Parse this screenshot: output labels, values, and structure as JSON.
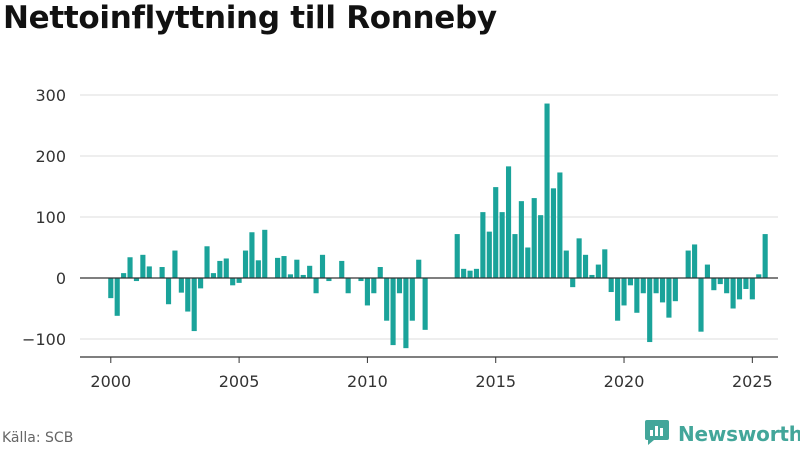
{
  "title": "Nettoinflyttning till Ronneby",
  "source": "Källa: SCB",
  "brand": {
    "name": "Newsworthy",
    "icon": "newsworthy-logo-icon"
  },
  "colors": {
    "bar": "#1aa39a",
    "grid": "#dddddd",
    "zero": "#333333",
    "brand": "#43a69a"
  },
  "chart_data": {
    "type": "bar",
    "title": "Nettoinflyttning till Ronneby",
    "xlabel": "",
    "ylabel": "",
    "ylim": [
      -120,
      310
    ],
    "xlim": [
      1998.8,
      2026.0
    ],
    "y_ticks": [
      300,
      200,
      100,
      0,
      -100
    ],
    "y_tick_labels": [
      "300",
      "200",
      "100",
      "0",
      "−100"
    ],
    "x_ticks": [
      2000,
      2005,
      2010,
      2015,
      2020,
      2025
    ],
    "x_tick_labels": [
      "2000",
      "2005",
      "2010",
      "2015",
      "2020",
      "2025"
    ],
    "grid": true,
    "frequency": "quarterly",
    "start_period": "2000 Q1",
    "values": [
      -33,
      -62,
      8,
      34,
      -5,
      38,
      19,
      0,
      18,
      -43,
      45,
      -24,
      -55,
      -87,
      -17,
      52,
      8,
      28,
      32,
      -12,
      -8,
      45,
      75,
      29,
      79,
      0,
      33,
      36,
      6,
      30,
      5,
      20,
      -25,
      38,
      -5,
      0,
      28,
      -25,
      0,
      -5,
      -45,
      -25,
      18,
      -70,
      -110,
      -25,
      -115,
      -70,
      30,
      -85,
      0,
      0,
      0,
      0,
      72,
      15,
      12,
      15,
      108,
      76,
      149,
      108,
      183,
      72,
      126,
      50,
      131,
      103,
      286,
      147,
      173,
      45,
      -15,
      65,
      38,
      5,
      22,
      47,
      -23,
      -70,
      -45,
      -12,
      -57,
      -25,
      -105,
      -25,
      -40,
      -65,
      -38,
      0,
      45,
      55,
      -88,
      22,
      -20,
      -10,
      -25,
      -50,
      -35,
      -18,
      -35,
      6,
      72
    ]
  }
}
